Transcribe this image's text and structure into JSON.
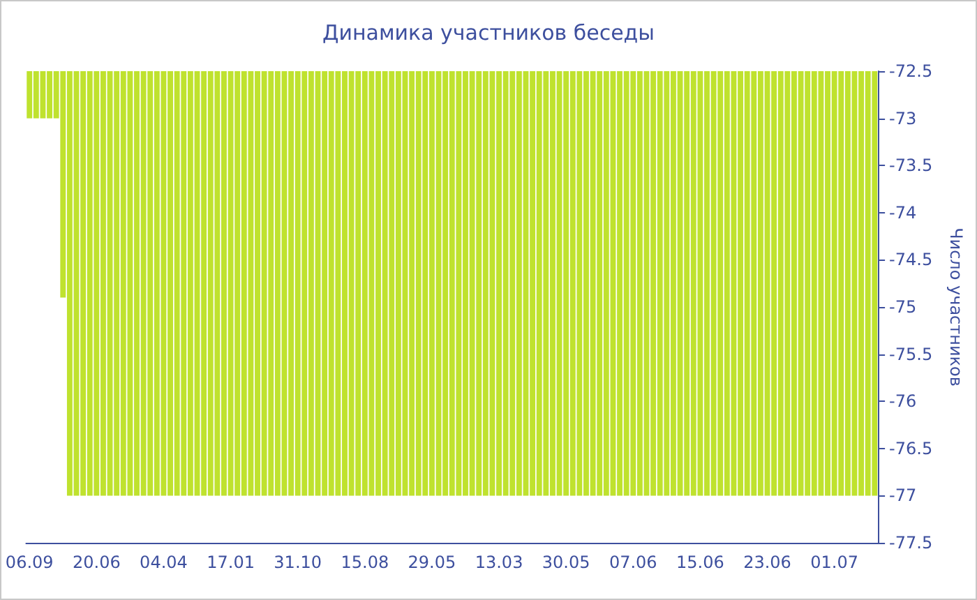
{
  "chart_data": {
    "type": "bar",
    "title": "Динамика участников беседы",
    "y2label": "Число участников",
    "categories": [
      "06.09",
      null,
      null,
      null,
      null,
      null,
      null,
      null,
      null,
      null,
      "20.06",
      null,
      null,
      null,
      null,
      null,
      null,
      null,
      null,
      null,
      "04.04",
      null,
      null,
      null,
      null,
      null,
      null,
      null,
      null,
      null,
      "17.01",
      null,
      null,
      null,
      null,
      null,
      null,
      null,
      null,
      null,
      "31.10",
      null,
      null,
      null,
      null,
      null,
      null,
      null,
      null,
      null,
      "15.08",
      null,
      null,
      null,
      null,
      null,
      null,
      null,
      null,
      null,
      "29.05",
      null,
      null,
      null,
      null,
      null,
      null,
      null,
      null,
      null,
      "13.03",
      null,
      null,
      null,
      null,
      null,
      null,
      null,
      null,
      null,
      "30.05",
      null,
      null,
      null,
      null,
      null,
      null,
      null,
      null,
      null,
      "07.06",
      null,
      null,
      null,
      null,
      null,
      null,
      null,
      null,
      null,
      "15.06",
      null,
      null,
      null,
      null,
      null,
      null,
      null,
      null,
      null,
      "23.06",
      null,
      null,
      null,
      null,
      null,
      null,
      null,
      null,
      null,
      "01.07",
      null,
      null,
      null,
      null,
      null,
      null
    ],
    "series": [
      {
        "color": "#bfe22e",
        "axis": "y2",
        "values": [
          -73,
          -73,
          -73,
          -73,
          -73,
          -74.9,
          -77,
          -77,
          -77,
          -77,
          -77,
          -77,
          -77,
          -77,
          -77,
          -77,
          -77,
          -77,
          -77,
          -77,
          -77,
          -77,
          -77,
          -77,
          -77,
          -77,
          -77,
          -77,
          -77,
          -77,
          -77,
          -77,
          -77,
          -77,
          -77,
          -77,
          -77,
          -77,
          -77,
          -77,
          -77,
          -77,
          -77,
          -77,
          -77,
          -77,
          -77,
          -77,
          -77,
          -77,
          -77,
          -77,
          -77,
          -77,
          -77,
          -77,
          -77,
          -77,
          -77,
          -77,
          -77,
          -77,
          -77,
          -77,
          -77,
          -77,
          -77,
          -77,
          -77,
          -77,
          -77,
          -77,
          -77,
          -77,
          -77,
          -77,
          -77,
          -77,
          -77,
          -77,
          -77,
          -77,
          -77,
          -77,
          -77,
          -77,
          -77,
          -77,
          -77,
          -77,
          -77,
          -77,
          -77,
          -77,
          -77,
          -77,
          -77,
          -77,
          -77,
          -77,
          -77,
          -77,
          -77,
          -77,
          -77,
          -77,
          -77,
          -77,
          -77,
          -77,
          -77,
          -77,
          -77,
          -77,
          -77,
          -77,
          -77,
          -77,
          -77,
          -77,
          -77,
          -77,
          -77,
          -77,
          -77,
          -77,
          -77
        ]
      }
    ],
    "y2lim": [
      -77.5,
      -72.5
    ],
    "y2ticks": [
      -77.5,
      -77,
      -76.5,
      -76,
      -75.5,
      -75,
      -74.5,
      -74,
      -73.5,
      -73,
      -72.5
    ]
  }
}
